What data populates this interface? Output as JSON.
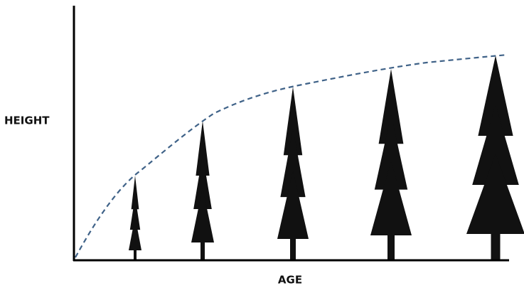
{
  "axes": {
    "y_label": "HEIGHT",
    "x_label": "AGE"
  }
}
